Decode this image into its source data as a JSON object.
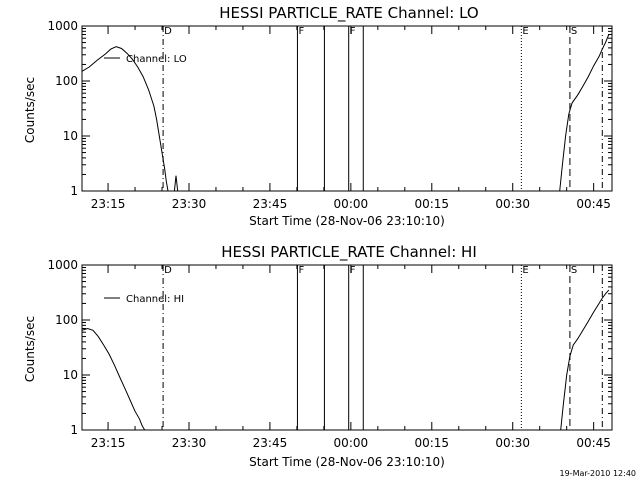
{
  "footer_timestamp": "19-Mar-2010 12:40",
  "colors": {
    "background": "#ffffff",
    "foreground": "#000000"
  },
  "chart_data": [
    {
      "type": "line",
      "title": "HESSI PARTICLE_RATE Channel: LO",
      "xlabel": "Start Time (28-Nov-06 23:10:10)",
      "ylabel": "Counts/sec",
      "yscale": "log",
      "ylim": [
        1,
        1000
      ],
      "xlim_minutes_after_23_00": [
        10.17,
        108.4
      ],
      "x_ticks": [
        {
          "minute": 15,
          "label": "23:15"
        },
        {
          "minute": 30,
          "label": "23:30"
        },
        {
          "minute": 45,
          "label": "23:45"
        },
        {
          "minute": 60,
          "label": "00:00"
        },
        {
          "minute": 75,
          "label": "00:15"
        },
        {
          "minute": 90,
          "label": "00:30"
        },
        {
          "minute": 105,
          "label": "00:45"
        }
      ],
      "y_ticks": [
        {
          "value": 1,
          "label": "1"
        },
        {
          "value": 10,
          "label": "10"
        },
        {
          "value": 100,
          "label": "100"
        },
        {
          "value": 1000,
          "label": "1000"
        }
      ],
      "legend": {
        "label": "Channel: LO",
        "placement": "top-left"
      },
      "grid": false,
      "event_lines": [
        {
          "minute": 25.2,
          "style": "dashdot",
          "label": "D"
        },
        {
          "minute": 50.1,
          "style": "solid",
          "label": "F"
        },
        {
          "minute": 55.1,
          "style": "solid",
          "label": ""
        },
        {
          "minute": 59.6,
          "style": "solid",
          "label": "F"
        },
        {
          "minute": 62.3,
          "style": "solid",
          "label": ""
        },
        {
          "minute": 91.6,
          "style": "dotted",
          "label": "E"
        },
        {
          "minute": 100.6,
          "style": "dashed",
          "label": "S"
        },
        {
          "minute": 106.6,
          "style": "dashdot",
          "label": ""
        }
      ],
      "series": [
        {
          "name": "Channel: LO",
          "segments": [
            {
              "x": [
                10.17,
                11.5,
                13,
                14.5,
                15.5,
                16.5,
                17.5,
                18.5,
                19.5,
                20.5,
                21.5,
                22.5,
                23.5,
                24,
                24.5,
                25,
                25.5,
                25.8,
                26.1
              ],
              "y": [
                150,
                180,
                240,
                310,
                380,
                420,
                390,
                320,
                250,
                180,
                120,
                70,
                35,
                20,
                10,
                5,
                2.5,
                1.5,
                1
              ]
            },
            {
              "x": [
                27.3,
                27.6,
                27.9
              ],
              "y": [
                1,
                1.9,
                1
              ]
            },
            {
              "x": [
                98.7,
                99.2,
                99.8,
                100.4,
                101,
                102,
                103,
                104,
                105,
                106,
                106.6,
                107.2,
                107.8
              ],
              "y": [
                1,
                3,
                10,
                25,
                40,
                55,
                80,
                120,
                190,
                280,
                380,
                500,
                700
              ]
            }
          ]
        }
      ]
    },
    {
      "type": "line",
      "title": "HESSI PARTICLE_RATE Channel: HI",
      "xlabel": "Start Time (28-Nov-06 23:10:10)",
      "ylabel": "Counts/sec",
      "yscale": "log",
      "ylim": [
        1,
        1000
      ],
      "xlim_minutes_after_23_00": [
        10.17,
        108.4
      ],
      "x_ticks": [
        {
          "minute": 15,
          "label": "23:15"
        },
        {
          "minute": 30,
          "label": "23:30"
        },
        {
          "minute": 45,
          "label": "23:45"
        },
        {
          "minute": 60,
          "label": "00:00"
        },
        {
          "minute": 75,
          "label": "00:15"
        },
        {
          "minute": 90,
          "label": "00:30"
        },
        {
          "minute": 105,
          "label": "00:45"
        }
      ],
      "y_ticks": [
        {
          "value": 1,
          "label": "1"
        },
        {
          "value": 10,
          "label": "10"
        },
        {
          "value": 100,
          "label": "100"
        },
        {
          "value": 1000,
          "label": "1000"
        }
      ],
      "legend": {
        "label": "Channel: HI",
        "placement": "top-left"
      },
      "grid": false,
      "event_lines": [
        {
          "minute": 25.2,
          "style": "dashdot",
          "label": "D"
        },
        {
          "minute": 50.1,
          "style": "solid",
          "label": "F"
        },
        {
          "minute": 55.1,
          "style": "solid",
          "label": ""
        },
        {
          "minute": 59.6,
          "style": "solid",
          "label": "F"
        },
        {
          "minute": 62.3,
          "style": "solid",
          "label": ""
        },
        {
          "minute": 91.6,
          "style": "dotted",
          "label": "E"
        },
        {
          "minute": 100.6,
          "style": "dashed",
          "label": "S"
        },
        {
          "minute": 106.6,
          "style": "dashdot",
          "label": ""
        }
      ],
      "series": [
        {
          "name": "Channel: HI",
          "segments": [
            {
              "x": [
                10.17,
                11.2,
                12.2,
                13.2,
                14.2,
                15.2,
                16.2,
                17.2,
                18.2,
                19.2,
                20,
                20.8,
                21.3,
                21.8
              ],
              "y": [
                65,
                70,
                65,
                50,
                35,
                24,
                15,
                9,
                5.5,
                3.3,
                2.2,
                1.6,
                1.2,
                1
              ]
            },
            {
              "x": [
                98.9,
                99.4,
                100,
                100.6,
                101.2,
                102,
                103,
                104,
                105,
                106,
                106.6,
                107.2,
                107.8
              ],
              "y": [
                1,
                3,
                10,
                22,
                35,
                45,
                65,
                95,
                140,
                200,
                250,
                300,
                350
              ]
            }
          ]
        }
      ]
    }
  ]
}
